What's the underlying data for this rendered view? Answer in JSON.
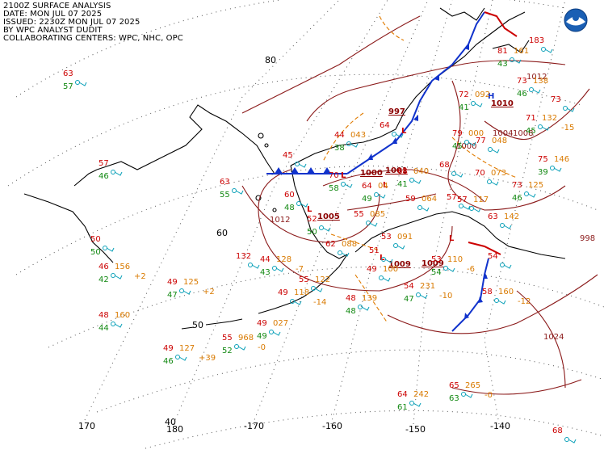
{
  "header": {
    "line1": "2100Z SURFACE ANALYSIS",
    "line2": "DATE: MON JUL 07 2025",
    "line3": "ISSUED: 2230Z MON JUL 07 2025",
    "line4": "BY WPC ANALYST DUDIT",
    "line5": "COLLABORATING CENTERS: WPC, NHC, OPC"
  },
  "logo": {
    "name": "noaa-logo",
    "color": "#1a5fb4"
  },
  "grid_labels": {
    "lat": [
      "80",
      "60",
      "50",
      "40"
    ],
    "lon": [
      "170",
      "180",
      "-170",
      "-160",
      "-150",
      "-140"
    ]
  },
  "pressure_centers": [
    {
      "type": "H",
      "value": "1010",
      "color": "#1133cc"
    },
    {
      "type": "L",
      "value": "997",
      "color": "#cc0000"
    },
    {
      "type": "L",
      "value": "1000",
      "color": "#cc0000"
    },
    {
      "type": "L",
      "value": "1001",
      "color": "#cc0000"
    },
    {
      "type": "L",
      "value": "1005",
      "color": "#cc0000"
    },
    {
      "type": "L",
      "value": "1009",
      "color": "#cc0000"
    },
    {
      "type": "L",
      "value": "1009",
      "color": "#cc0000"
    }
  ],
  "isobars": [
    "1004",
    "1008",
    "1012",
    "1012",
    "1000",
    "1024",
    "998"
  ],
  "stations": [
    {
      "t": "63",
      "td": "57",
      "p": ""
    },
    {
      "t": "57",
      "td": "46",
      "p": ""
    },
    {
      "t": "50",
      "td": "50",
      "p": ""
    },
    {
      "t": "46",
      "td": "42",
      "p": "156",
      "tend": "+2"
    },
    {
      "t": "49",
      "td": "47",
      "p": "125",
      "tend": "+2"
    },
    {
      "t": "48",
      "td": "44",
      "p": "160",
      "tend": ""
    },
    {
      "t": "49",
      "td": "46",
      "p": "127",
      "tend": "+39"
    },
    {
      "t": "55",
      "td": "52",
      "p": "968",
      "tend": "-0"
    },
    {
      "t": "49",
      "td": "49",
      "p": "027",
      "tend": ""
    },
    {
      "t": "63",
      "td": "55",
      "p": "",
      "tend": ""
    },
    {
      "t": "132",
      "td": "",
      "p": "",
      "tend": ""
    },
    {
      "t": "44",
      "td": "43",
      "p": "128",
      "tend": "-7"
    },
    {
      "t": "55",
      "td": "",
      "p": "122",
      "tend": ""
    },
    {
      "t": "49",
      "td": "",
      "p": "118",
      "tend": "-14"
    },
    {
      "t": "48",
      "td": "48",
      "p": "139",
      "tend": ""
    },
    {
      "t": "54",
      "td": "47",
      "p": "231",
      "tend": "-10"
    },
    {
      "t": "64",
      "td": "61",
      "p": "242",
      "tend": ""
    },
    {
      "t": "65",
      "td": "63",
      "p": "265",
      "tend": "-0"
    },
    {
      "t": "58",
      "td": "",
      "p": "160",
      "tend": "-12"
    },
    {
      "t": "63",
      "td": "",
      "p": "142",
      "tend": ""
    },
    {
      "t": "75",
      "td": "39",
      "p": "146",
      "tend": ""
    },
    {
      "t": "73",
      "td": "46",
      "p": "125",
      "tend": ""
    },
    {
      "t": "57",
      "td": "",
      "p": "117",
      "tend": ""
    },
    {
      "t": "68",
      "td": "",
      "p": "",
      "tend": ""
    },
    {
      "t": "70",
      "td": "",
      "p": "073",
      "tend": ""
    },
    {
      "t": "77",
      "td": "",
      "p": "048",
      "tend": ""
    },
    {
      "t": "79",
      "td": "45",
      "p": "000",
      "tend": ""
    },
    {
      "t": "72",
      "td": "41",
      "p": "092",
      "tend": ""
    },
    {
      "t": "73",
      "td": "46",
      "p": "138",
      "tend": ""
    },
    {
      "t": "71",
      "td": "45",
      "p": "132",
      "tend": "-15"
    },
    {
      "t": "73",
      "td": "",
      "p": "",
      "tend": ""
    },
    {
      "t": "81",
      "td": "43",
      "p": "161",
      "tend": ""
    },
    {
      "t": "44",
      "td": "38",
      "p": "043",
      "tend": ""
    },
    {
      "t": "45",
      "td": "",
      "p": "",
      "tend": ""
    },
    {
      "t": "64",
      "td": "",
      "p": "",
      "tend": ""
    },
    {
      "t": "62",
      "td": "",
      "p": "088",
      "tend": ""
    },
    {
      "t": "55",
      "td": "",
      "p": "085",
      "tend": ""
    },
    {
      "t": "53",
      "td": "",
      "p": "091",
      "tend": ""
    },
    {
      "t": "59",
      "td": "",
      "p": "064",
      "tend": ""
    },
    {
      "t": "49",
      "td": "",
      "p": "100",
      "tend": ""
    },
    {
      "t": "53",
      "td": "54",
      "p": "110",
      "tend": "-6"
    },
    {
      "t": "64",
      "td": "49",
      "p": "04",
      "tend": ""
    },
    {
      "t": "68",
      "td": "41",
      "p": "040",
      "tend": ""
    },
    {
      "t": "70",
      "td": "58",
      "p": "",
      "tend": ""
    },
    {
      "t": "60",
      "td": "48",
      "p": "",
      "tend": ""
    },
    {
      "t": "52",
      "td": "50",
      "p": "",
      "tend": ""
    },
    {
      "t": "51",
      "td": "",
      "p": "",
      "tend": ""
    },
    {
      "t": "54",
      "td": "",
      "p": "",
      "tend": ""
    },
    {
      "t": "57",
      "td": "",
      "p": "",
      "tend": ""
    },
    {
      "t": "183",
      "td": "",
      "p": "",
      "tend": ""
    },
    {
      "t": "68",
      "td": "",
      "p": "",
      "tend": ""
    }
  ]
}
